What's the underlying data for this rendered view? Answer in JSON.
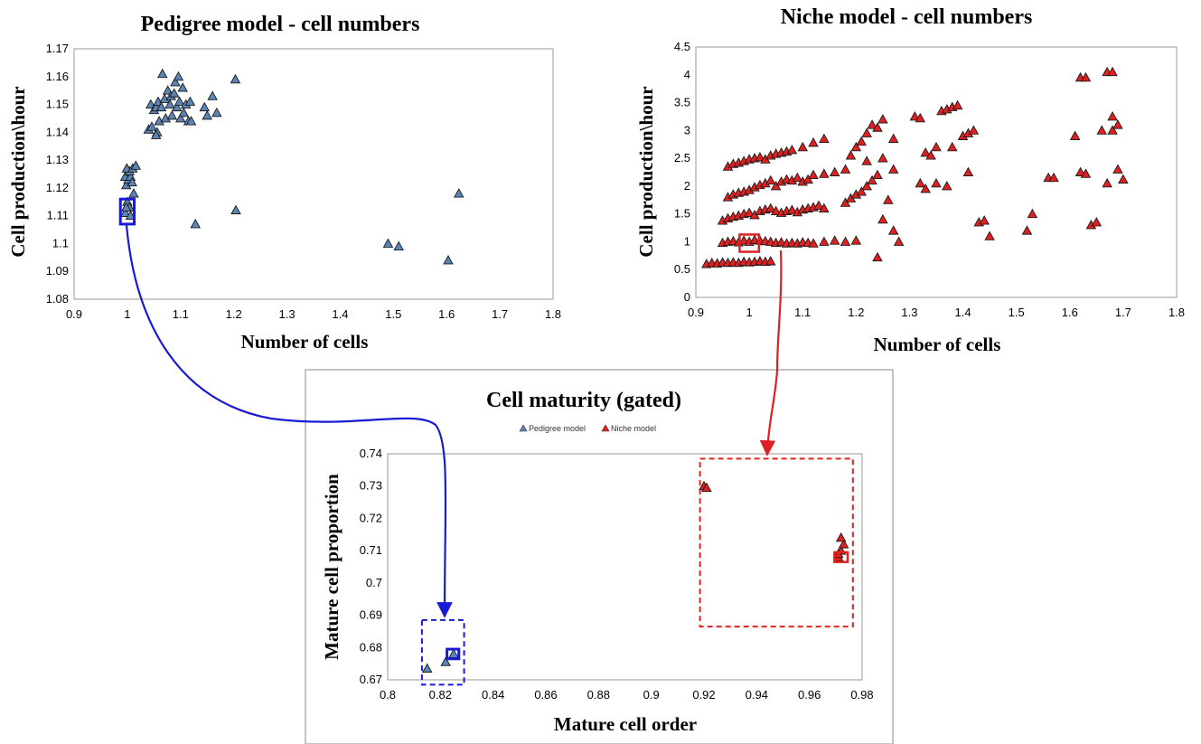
{
  "chart_data": [
    {
      "type": "scatter",
      "title": "Pedigree model - cell numbers",
      "xlabel": "Number of cells",
      "ylabel": "Cell production\\hour",
      "xlim": [
        0.9,
        1.8
      ],
      "ylim": [
        1.08,
        1.17
      ],
      "xticks": [
        0.9,
        1,
        1.1,
        1.2,
        1.3,
        1.4,
        1.5,
        1.6,
        1.7,
        1.8
      ],
      "yticks": [
        1.08,
        1.09,
        1.1,
        1.11,
        1.12,
        1.13,
        1.14,
        1.15,
        1.16,
        1.17
      ],
      "xtick_labels": [
        "0.9",
        "1",
        "1.1",
        "1.2",
        "1.3",
        "1.4",
        "1.5",
        "1.6",
        "1.7",
        "1.8"
      ],
      "ytick_labels": [
        "1.08",
        "1.09",
        "1.1",
        "1.11",
        "1.12",
        "1.13",
        "1.14",
        "1.15",
        "1.16",
        "1.17"
      ],
      "grid": false,
      "marker": "triangle",
      "color": "#5b85b4",
      "highlight": {
        "x": [
          0.987,
          1.013
        ],
        "y": [
          1.107,
          1.116
        ],
        "color": "#1a1ad6"
      },
      "series": [
        {
          "points": [
            [
              0.996,
              1.111
            ],
            [
              1.0,
              1.115
            ],
            [
              1.004,
              1.113
            ],
            [
              1.006,
              1.11
            ],
            [
              0.998,
              1.113
            ],
            [
              0.998,
              1.121
            ],
            [
              1.002,
              1.123
            ],
            [
              0.996,
              1.124
            ],
            [
              1.006,
              1.124
            ],
            [
              1.004,
              1.126
            ],
            [
              0.999,
              1.127
            ],
            [
              1.01,
              1.127
            ],
            [
              1.016,
              1.128
            ],
            [
              1.009,
              1.122
            ],
            [
              1.012,
              1.118
            ],
            [
              1.04,
              1.141
            ],
            [
              1.046,
              1.142
            ],
            [
              1.044,
              1.15
            ],
            [
              1.05,
              1.148
            ],
            [
              1.054,
              1.149
            ],
            [
              1.058,
              1.151
            ],
            [
              1.056,
              1.14
            ],
            [
              1.054,
              1.139
            ],
            [
              1.06,
              1.144
            ],
            [
              1.064,
              1.149
            ],
            [
              1.066,
              1.161
            ],
            [
              1.07,
              1.152
            ],
            [
              1.072,
              1.145
            ],
            [
              1.076,
              1.155
            ],
            [
              1.08,
              1.15
            ],
            [
              1.082,
              1.153
            ],
            [
              1.084,
              1.146
            ],
            [
              1.088,
              1.154
            ],
            [
              1.09,
              1.158
            ],
            [
              1.093,
              1.149
            ],
            [
              1.096,
              1.16
            ],
            [
              1.098,
              1.151
            ],
            [
              1.1,
              1.145
            ],
            [
              1.104,
              1.156
            ],
            [
              1.106,
              1.147
            ],
            [
              1.11,
              1.15
            ],
            [
              1.115,
              1.144
            ],
            [
              1.118,
              1.151
            ],
            [
              1.12,
              1.144
            ],
            [
              1.145,
              1.149
            ],
            [
              1.15,
              1.146
            ],
            [
              1.16,
              1.153
            ],
            [
              1.168,
              1.147
            ],
            [
              1.128,
              1.107
            ],
            [
              1.203,
              1.159
            ],
            [
              1.204,
              1.112
            ],
            [
              1.49,
              1.1
            ],
            [
              1.51,
              1.099
            ],
            [
              1.603,
              1.094
            ],
            [
              1.623,
              1.118
            ]
          ]
        }
      ]
    },
    {
      "type": "scatter",
      "title": "Niche model - cell numbers",
      "xlabel": "Number of cells",
      "ylabel": "Cell production\\hour",
      "xlim": [
        0.9,
        1.8
      ],
      "ylim": [
        0,
        4.5
      ],
      "xticks": [
        0.9,
        1,
        1.1,
        1.2,
        1.3,
        1.4,
        1.5,
        1.6,
        1.7,
        1.8
      ],
      "yticks": [
        0,
        0.5,
        1,
        1.5,
        2,
        2.5,
        3,
        3.5,
        4,
        4.5
      ],
      "xtick_labels": [
        "0.9",
        "1",
        "1.1",
        "1.2",
        "1.3",
        "1.4",
        "1.5",
        "1.6",
        "1.7",
        "1.8"
      ],
      "ytick_labels": [
        "0",
        "0.5",
        "1",
        "1.5",
        "2",
        "2.5",
        "3",
        "3.5",
        "4",
        "4.5"
      ],
      "grid": false,
      "marker": "triangle",
      "color": "#e02020",
      "highlight": {
        "x": [
          0.982,
          1.018
        ],
        "y": [
          0.82,
          1.13
        ],
        "color": "#e02020"
      },
      "series": [
        {
          "points": [
            [
              0.92,
              0.6
            ],
            [
              0.93,
              0.62
            ],
            [
              0.94,
              0.61
            ],
            [
              0.95,
              0.63
            ],
            [
              0.96,
              0.62
            ],
            [
              0.97,
              0.63
            ],
            [
              0.98,
              0.62
            ],
            [
              0.99,
              0.64
            ],
            [
              1.0,
              0.63
            ],
            [
              1.01,
              0.64
            ],
            [
              1.02,
              0.65
            ],
            [
              1.03,
              0.64
            ],
            [
              1.04,
              0.65
            ],
            [
              0.95,
              0.98
            ],
            [
              0.96,
              1.0
            ],
            [
              0.97,
              1.01
            ],
            [
              0.98,
              0.99
            ],
            [
              0.99,
              1.02
            ],
            [
              1.0,
              1.0
            ],
            [
              1.01,
              1.03
            ],
            [
              1.02,
              1.02
            ],
            [
              1.03,
              1.01
            ],
            [
              1.04,
              1.0
            ],
            [
              1.05,
              0.98
            ],
            [
              1.06,
              0.99
            ],
            [
              1.07,
              0.97
            ],
            [
              1.08,
              0.98
            ],
            [
              1.09,
              0.97
            ],
            [
              1.1,
              0.99
            ],
            [
              1.11,
              0.98
            ],
            [
              1.12,
              0.97
            ],
            [
              1.14,
              1.0
            ],
            [
              1.16,
              1.02
            ],
            [
              1.18,
              1.0
            ],
            [
              1.2,
              1.02
            ],
            [
              0.95,
              1.38
            ],
            [
              0.96,
              1.42
            ],
            [
              0.97,
              1.45
            ],
            [
              0.98,
              1.47
            ],
            [
              0.99,
              1.5
            ],
            [
              1.0,
              1.52
            ],
            [
              1.01,
              1.48
            ],
            [
              1.02,
              1.55
            ],
            [
              1.03,
              1.58
            ],
            [
              1.04,
              1.6
            ],
            [
              1.05,
              1.55
            ],
            [
              1.06,
              1.52
            ],
            [
              1.07,
              1.55
            ],
            [
              1.08,
              1.57
            ],
            [
              1.09,
              1.53
            ],
            [
              1.1,
              1.58
            ],
            [
              1.11,
              1.6
            ],
            [
              1.12,
              1.62
            ],
            [
              1.13,
              1.65
            ],
            [
              1.14,
              1.6
            ],
            [
              0.96,
              1.8
            ],
            [
              0.97,
              1.85
            ],
            [
              0.98,
              1.88
            ],
            [
              0.99,
              1.9
            ],
            [
              1.0,
              1.93
            ],
            [
              1.01,
              1.98
            ],
            [
              1.02,
              2.02
            ],
            [
              1.03,
              2.05
            ],
            [
              1.04,
              2.1
            ],
            [
              1.05,
              2.0
            ],
            [
              1.06,
              2.08
            ],
            [
              1.07,
              2.12
            ],
            [
              1.08,
              2.1
            ],
            [
              1.09,
              2.15
            ],
            [
              1.1,
              2.08
            ],
            [
              1.11,
              2.12
            ],
            [
              1.12,
              2.2
            ],
            [
              1.14,
              2.22
            ],
            [
              1.16,
              2.25
            ],
            [
              1.18,
              2.3
            ],
            [
              0.96,
              2.35
            ],
            [
              0.97,
              2.4
            ],
            [
              0.98,
              2.42
            ],
            [
              0.99,
              2.45
            ],
            [
              1.0,
              2.48
            ],
            [
              1.01,
              2.5
            ],
            [
              1.02,
              2.52
            ],
            [
              1.03,
              2.48
            ],
            [
              1.04,
              2.55
            ],
            [
              1.05,
              2.58
            ],
            [
              1.06,
              2.6
            ],
            [
              1.07,
              2.62
            ],
            [
              1.08,
              2.65
            ],
            [
              1.1,
              2.7
            ],
            [
              1.12,
              2.78
            ],
            [
              1.14,
              2.85
            ],
            [
              1.18,
              1.7
            ],
            [
              1.19,
              1.78
            ],
            [
              1.2,
              1.85
            ],
            [
              1.21,
              1.9
            ],
            [
              1.22,
              2.0
            ],
            [
              1.23,
              2.1
            ],
            [
              1.24,
              2.2
            ],
            [
              1.19,
              2.55
            ],
            [
              1.2,
              2.7
            ],
            [
              1.21,
              2.8
            ],
            [
              1.22,
              2.95
            ],
            [
              1.23,
              3.1
            ],
            [
              1.24,
              3.05
            ],
            [
              1.25,
              3.2
            ],
            [
              1.22,
              2.45
            ],
            [
              1.25,
              2.5
            ],
            [
              1.26,
              1.75
            ],
            [
              1.27,
              2.3
            ],
            [
              1.24,
              0.72
            ],
            [
              1.25,
              1.4
            ],
            [
              1.27,
              1.2
            ],
            [
              1.28,
              1.0
            ],
            [
              1.27,
              2.85
            ],
            [
              1.31,
              3.25
            ],
            [
              1.32,
              3.22
            ],
            [
              1.32,
              2.05
            ],
            [
              1.33,
              1.95
            ],
            [
              1.33,
              2.6
            ],
            [
              1.34,
              2.55
            ],
            [
              1.35,
              2.05
            ],
            [
              1.35,
              2.7
            ],
            [
              1.36,
              3.35
            ],
            [
              1.37,
              3.38
            ],
            [
              1.37,
              2.0
            ],
            [
              1.38,
              2.7
            ],
            [
              1.38,
              3.42
            ],
            [
              1.39,
              3.45
            ],
            [
              1.4,
              2.9
            ],
            [
              1.41,
              2.95
            ],
            [
              1.41,
              2.25
            ],
            [
              1.42,
              3.0
            ],
            [
              1.43,
              1.35
            ],
            [
              1.44,
              1.38
            ],
            [
              1.45,
              1.1
            ],
            [
              1.52,
              1.2
            ],
            [
              1.53,
              1.5
            ],
            [
              1.56,
              2.15
            ],
            [
              1.57,
              2.15
            ],
            [
              1.61,
              2.9
            ],
            [
              1.62,
              2.25
            ],
            [
              1.63,
              2.22
            ],
            [
              1.62,
              3.95
            ],
            [
              1.63,
              3.95
            ],
            [
              1.64,
              1.3
            ],
            [
              1.65,
              1.35
            ],
            [
              1.66,
              3.0
            ],
            [
              1.67,
              4.05
            ],
            [
              1.68,
              4.05
            ],
            [
              1.67,
              2.05
            ],
            [
              1.68,
              3.0
            ],
            [
              1.68,
              3.25
            ],
            [
              1.69,
              3.1
            ],
            [
              1.69,
              2.3
            ],
            [
              1.7,
              2.12
            ]
          ]
        }
      ]
    },
    {
      "type": "scatter",
      "title": "Cell maturity (gated)",
      "xlabel": "Mature cell order",
      "ylabel": "Mature cell proportion",
      "xlim": [
        0.8,
        0.98
      ],
      "ylim": [
        0.67,
        0.74
      ],
      "xticks": [
        0.8,
        0.82,
        0.84,
        0.86,
        0.88,
        0.9,
        0.92,
        0.94,
        0.96,
        0.98
      ],
      "yticks": [
        0.67,
        0.68,
        0.69,
        0.7,
        0.71,
        0.72,
        0.73,
        0.74
      ],
      "xtick_labels": [
        "0.8",
        "0.82",
        "0.84",
        "0.86",
        "0.88",
        "0.9",
        "0.92",
        "0.94",
        "0.96",
        "0.98"
      ],
      "ytick_labels": [
        "0.67",
        "0.68",
        "0.69",
        "0.7",
        "0.71",
        "0.72",
        "0.73",
        "0.74"
      ],
      "grid": false,
      "legend": "top",
      "highlight_pedigree": {
        "x": [
          0.8225,
          0.827
        ],
        "y": [
          0.6765,
          0.6795
        ],
        "color": "#1a1ad6"
      },
      "dashed_pedigree": {
        "x": [
          0.813,
          0.829
        ],
        "y": [
          0.6685,
          0.6885
        ],
        "color": "#1a1ad6"
      },
      "highlight_niche": {
        "x": [
          0.9695,
          0.9745
        ],
        "y": [
          0.7065,
          0.7095
        ],
        "color": "#e02020"
      },
      "dashed_niche": {
        "x": [
          0.9185,
          0.9765
        ],
        "y": [
          0.6865,
          0.7385
        ],
        "color": "#e02020"
      },
      "series": [
        {
          "name": "Pedigree model",
          "color": "#5b85b4",
          "points": [
            [
              0.815,
              0.6735
            ],
            [
              0.822,
              0.6755
            ],
            [
              0.825,
              0.678
            ]
          ]
        },
        {
          "name": "Niche model",
          "color": "#e02020",
          "points": [
            [
              0.92,
              0.73
            ],
            [
              0.921,
              0.7295
            ],
            [
              0.971,
              0.708
            ],
            [
              0.972,
              0.71
            ],
            [
              0.973,
              0.712
            ],
            [
              0.972,
              0.714
            ],
            [
              0.971,
              0.709
            ]
          ]
        }
      ]
    }
  ]
}
